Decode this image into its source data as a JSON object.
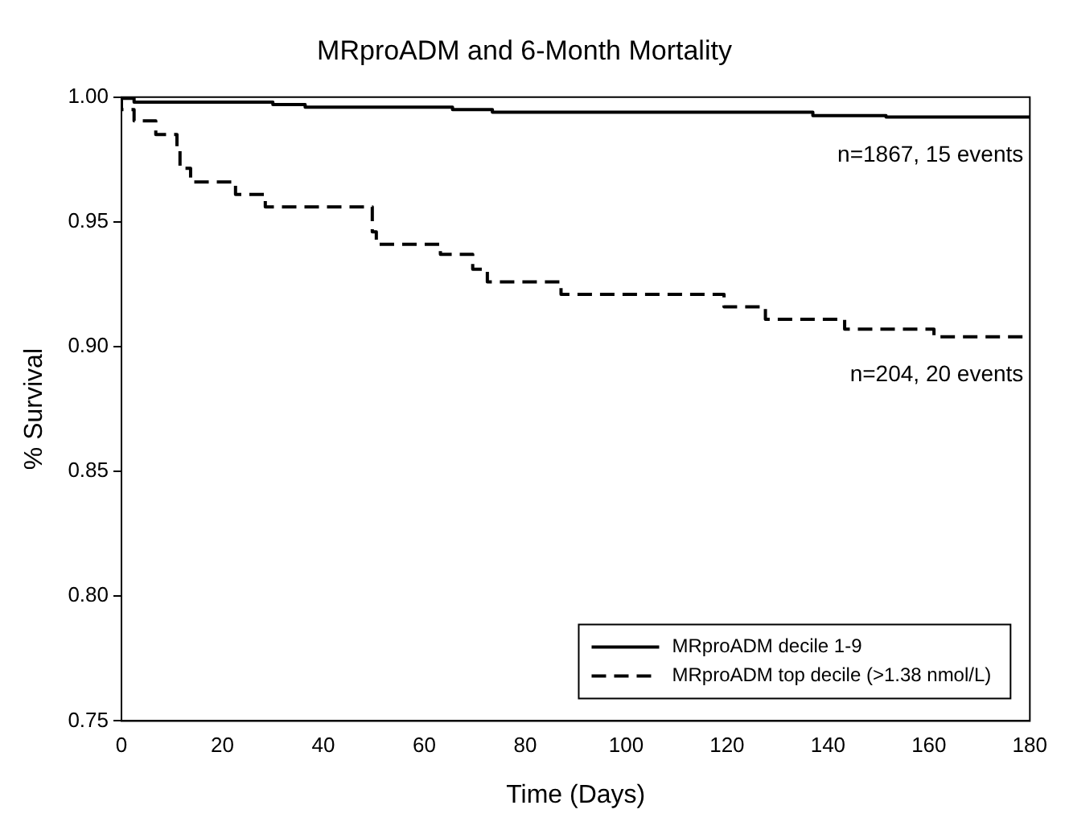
{
  "chart_data": {
    "type": "step",
    "title": "MRproADM and 6-Month Mortality",
    "xlabel": "Time (Days)",
    "ylabel": "% Survival",
    "series": [
      {
        "name": "MRproADM decile 1-9",
        "color": "#000000",
        "line_style": "solid",
        "x": [
          0,
          2.5,
          30,
          36.4,
          65.6,
          73.5,
          137,
          151.5,
          179.5,
          180
        ],
        "values": [
          1,
          0.9995,
          0.998,
          0.997,
          0.996,
          0.995,
          0.994,
          0.9926,
          0.992,
          0.992
        ]
      },
      {
        "name": "MRproADM top decile (>1.38 nmol/L)",
        "color": "#000000",
        "line_style": "dashed",
        "x": [
          0,
          2.5,
          6.8,
          11,
          11.6,
          13.7,
          22.6,
          28.5,
          49.7,
          50.5,
          63.2,
          69.6,
          72.5,
          87.1,
          119.4,
          127.6,
          143.3,
          161,
          179.5,
          180
        ],
        "values": [
          1,
          0.995,
          0.9905,
          0.985,
          0.98,
          0.9715,
          0.966,
          0.961,
          0.956,
          0.946,
          0.941,
          0.937,
          0.931,
          0.926,
          0.921,
          0.916,
          0.911,
          0.907,
          0.904,
          0.904
        ]
      }
    ],
    "xlim": [
      0,
      180
    ],
    "xticks": [
      0,
      20,
      40,
      60,
      80,
      100,
      120,
      140,
      160,
      180
    ],
    "ylim": [
      0.75,
      1.0
    ],
    "yticks": [
      {
        "value": 1.0,
        "label": "1.00"
      },
      {
        "value": 0.95,
        "label": "0.95"
      },
      {
        "value": 0.9,
        "label": "0.90"
      },
      {
        "value": 0.85,
        "label": "0.85"
      },
      {
        "value": 0.8,
        "label": "0.80"
      },
      {
        "value": 0.75,
        "label": "0.75"
      }
    ],
    "annotations": [
      "n=1867, 15 events",
      "n=204, 20 events"
    ],
    "legend": "bottom right",
    "marker": "none",
    "grid": false
  }
}
